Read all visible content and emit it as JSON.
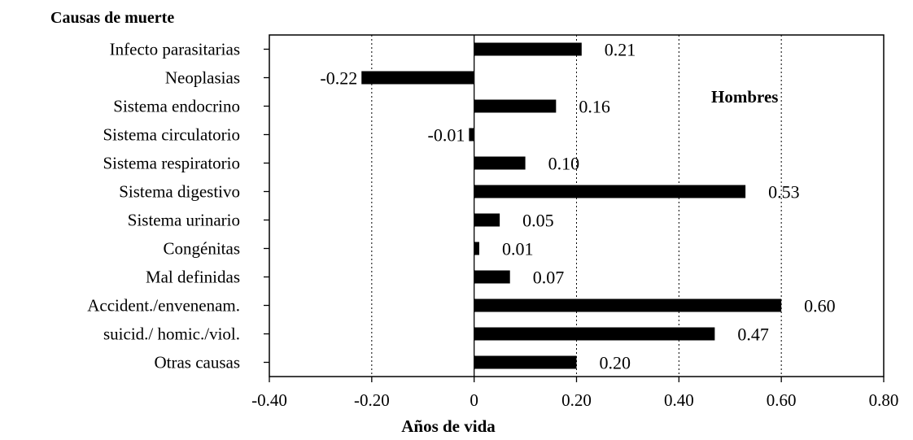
{
  "chart_data": {
    "type": "bar",
    "orientation": "horizontal",
    "y_heading": "Causas de muerte",
    "annotation": "Hombres",
    "xlabel": "Años de vida",
    "xlim": [
      -0.4,
      0.8
    ],
    "xticks": [
      -0.4,
      -0.2,
      0,
      0.2,
      0.4,
      0.6,
      0.8
    ],
    "xtick_labels": [
      "-0.40",
      "-0.20",
      "0",
      "0.20",
      "0.40",
      "0.60",
      "0.80"
    ],
    "grid": "vertical dotted",
    "bar_color": "#000000",
    "categories": [
      "Infecto parasitarias",
      "Neoplasias",
      "Sistema endocrino",
      "Sistema circulatorio",
      "Sistema respiratorio",
      "Sistema digestivo",
      "Sistema urinario",
      "Congénitas",
      "Mal definidas",
      "Accident./envenenam.",
      "suicid./ homic./viol.",
      "Otras causas"
    ],
    "values": [
      0.21,
      -0.22,
      0.16,
      -0.01,
      0.1,
      0.53,
      0.05,
      0.01,
      0.07,
      0.6,
      0.47,
      0.2
    ],
    "value_labels": [
      "0.21",
      "-0.22",
      "0.16",
      "-0.01",
      "0.10",
      "0.53",
      "0.05",
      "0.01",
      "0.07",
      "0.60",
      "0.47",
      "0.20"
    ]
  }
}
